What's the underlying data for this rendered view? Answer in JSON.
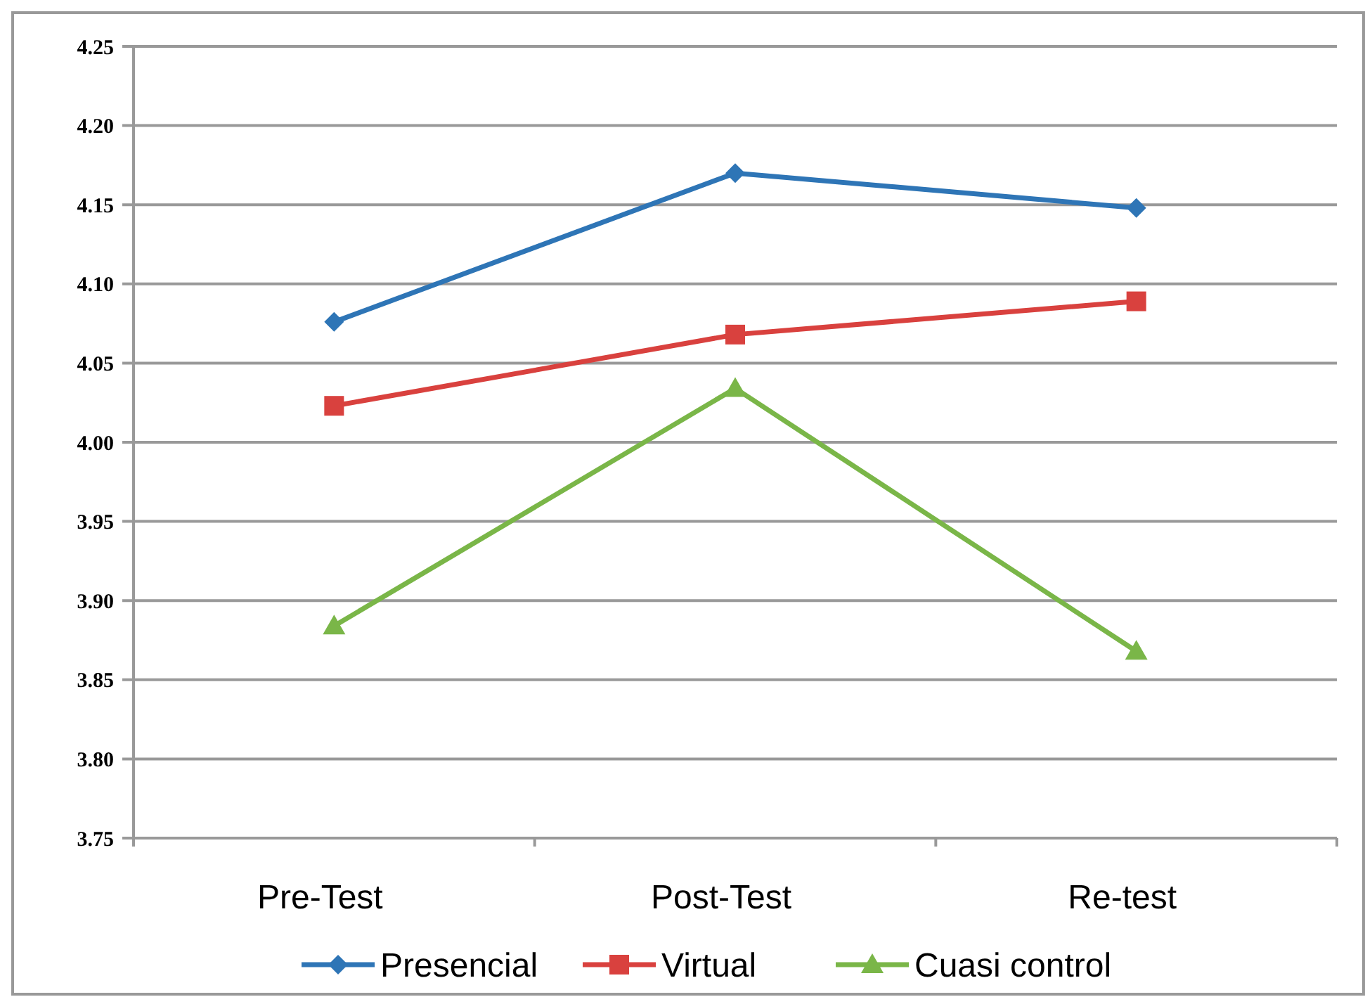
{
  "chart_data": {
    "type": "line",
    "categories": [
      "Pre-Test",
      "Post-Test",
      "Re-test"
    ],
    "series": [
      {
        "name": "Presencial",
        "color": "#2e75b6",
        "marker": "diamond",
        "values": [
          4.076,
          4.17,
          4.148
        ]
      },
      {
        "name": "Virtual",
        "color": "#d9413e",
        "marker": "square",
        "values": [
          4.023,
          4.068,
          4.089
        ]
      },
      {
        "name": "Cuasi control",
        "color": "#7ab648",
        "marker": "triangle",
        "values": [
          3.884,
          4.034,
          3.868
        ]
      }
    ],
    "ylim": [
      3.75,
      4.25
    ],
    "yticks": [
      3.75,
      {
        "value": 3.8,
        "label": "3.80"
      },
      3.85,
      {
        "value": 3.9,
        "label": "3.90"
      },
      3.95,
      {
        "value": 4,
        "label": "4.00"
      },
      4.05,
      {
        "value": 4.1,
        "label": "4.10"
      },
      4.15,
      {
        "value": 4.2,
        "label": "4.20"
      },
      4.25
    ],
    "grid": "y",
    "legend": "bottom",
    "line_style": "solid"
  }
}
